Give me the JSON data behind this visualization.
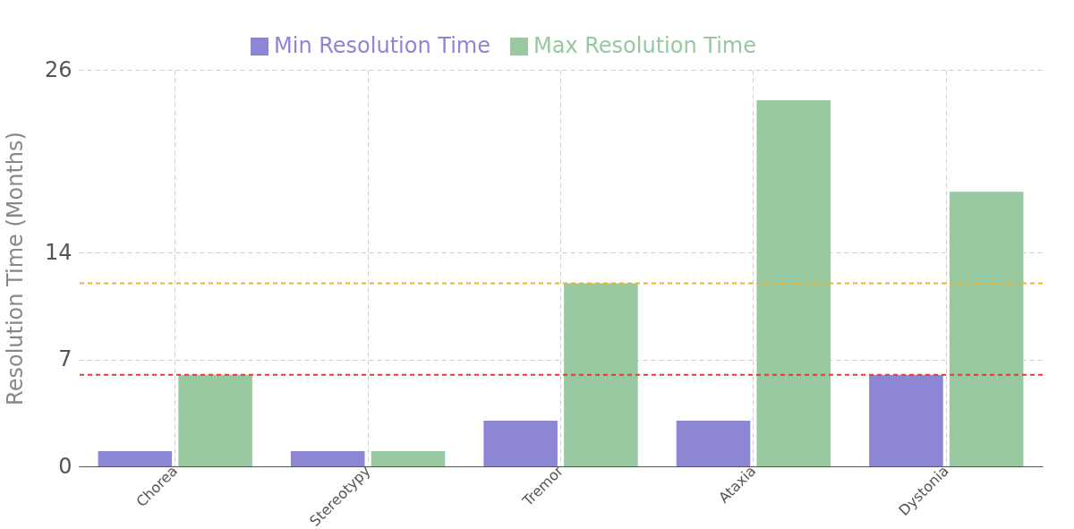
{
  "chart_data": {
    "type": "bar",
    "ylabel": "Resolution Time (Months)",
    "categories": [
      "Chorea",
      "Stereotypy",
      "Tremor",
      "Ataxia",
      "Dystonia"
    ],
    "series": [
      {
        "name": "Min Resolution Time",
        "color": "#8c86d4",
        "values": [
          1,
          1,
          3,
          3,
          6
        ]
      },
      {
        "name": "Max Resolution Time",
        "color": "#98c8a0",
        "values": [
          6,
          1,
          12,
          24,
          18
        ]
      }
    ],
    "ylim": [
      0,
      26
    ],
    "yticks": [
      0,
      7,
      14,
      26
    ],
    "grid": true,
    "legend": "top",
    "ref_lines": [
      {
        "axis": "y",
        "value": 12,
        "color": "#f0b030",
        "line_style": "dashed"
      },
      {
        "axis": "y",
        "value": 6,
        "color": "#e03c32",
        "line_style": "dashed"
      }
    ]
  }
}
